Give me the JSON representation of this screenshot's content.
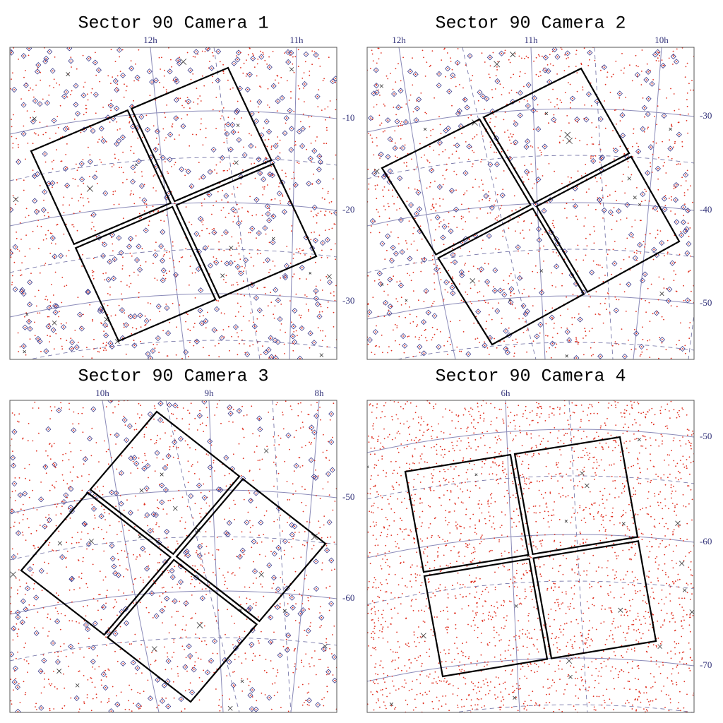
{
  "panels": [
    {
      "title": "Sector 90 Camera 1",
      "ra_labels": [
        "12h",
        "11h"
      ],
      "dec_labels": [
        "-10",
        "-20",
        "-30"
      ]
    },
    {
      "title": "Sector 90 Camera 2",
      "ra_labels": [
        "12h",
        "11h",
        "10h"
      ],
      "dec_labels": [
        "-30",
        "-40",
        "-50"
      ]
    },
    {
      "title": "Sector 90 Camera 3",
      "ra_labels": [
        "10h",
        "9h",
        "8h"
      ],
      "dec_labels": [
        "-50",
        "-60"
      ]
    },
    {
      "title": "Sector 90 Camera 4",
      "ra_labels": [
        "6h"
      ],
      "dec_labels": [
        "-50",
        "-60",
        "-70"
      ]
    }
  ]
}
